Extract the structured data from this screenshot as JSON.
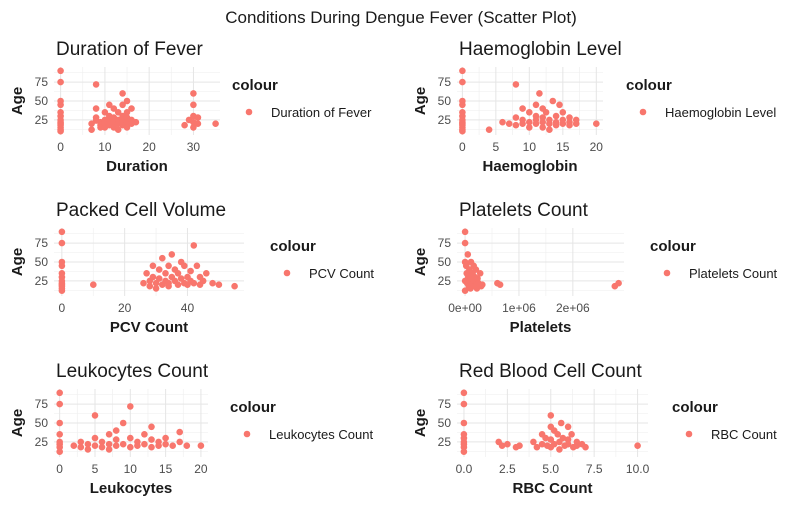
{
  "figure": {
    "title": "Conditions During Dengue Fever (Scatter Plot)",
    "point_color": "#F8766D"
  },
  "chart_data": [
    {
      "type": "scatter",
      "title": "Duration of Fever",
      "xlabel": "Duration",
      "ylabel": "Age",
      "legend_title": "colour",
      "legend_label": "Duration of Fever",
      "xlim": [
        -1.5,
        36
      ],
      "ylim": [
        5,
        95
      ],
      "xticks": [
        0,
        10,
        20,
        30
      ],
      "xtick_labels": [
        "0",
        "10",
        "20",
        "30"
      ],
      "yticks": [
        25,
        50,
        75
      ],
      "ytick_labels": [
        "25",
        "50",
        "75"
      ],
      "grid": true,
      "legend_position": "right",
      "points": [
        [
          0,
          90
        ],
        [
          0,
          75
        ],
        [
          0,
          50
        ],
        [
          0,
          45
        ],
        [
          0,
          35
        ],
        [
          0,
          30
        ],
        [
          0,
          25
        ],
        [
          0,
          22
        ],
        [
          0,
          20
        ],
        [
          0,
          18
        ],
        [
          0,
          15
        ],
        [
          0,
          12
        ],
        [
          0,
          10
        ],
        [
          7,
          20
        ],
        [
          7,
          12
        ],
        [
          8,
          72
        ],
        [
          8,
          40
        ],
        [
          8,
          28
        ],
        [
          8,
          24
        ],
        [
          9,
          22
        ],
        [
          9,
          18
        ],
        [
          9,
          15
        ],
        [
          10,
          35
        ],
        [
          10,
          25
        ],
        [
          10,
          22
        ],
        [
          10,
          20
        ],
        [
          10,
          15
        ],
        [
          11,
          45
        ],
        [
          11,
          30
        ],
        [
          11,
          25
        ],
        [
          11,
          20
        ],
        [
          11,
          18
        ],
        [
          12,
          40
        ],
        [
          12,
          28
        ],
        [
          12,
          22
        ],
        [
          12,
          15
        ],
        [
          13,
          35
        ],
        [
          13,
          25
        ],
        [
          13,
          20
        ],
        [
          13,
          12
        ],
        [
          14,
          60
        ],
        [
          14,
          45
        ],
        [
          14,
          30
        ],
        [
          14,
          25
        ],
        [
          14,
          22
        ],
        [
          14,
          18
        ],
        [
          15,
          50
        ],
        [
          15,
          35
        ],
        [
          15,
          28
        ],
        [
          15,
          22
        ],
        [
          15,
          20
        ],
        [
          15,
          15
        ],
        [
          16,
          40
        ],
        [
          16,
          25
        ],
        [
          16,
          20
        ],
        [
          17,
          22
        ],
        [
          28,
          18
        ],
        [
          29,
          25
        ],
        [
          30,
          60
        ],
        [
          30,
          45
        ],
        [
          30,
          30
        ],
        [
          30,
          22
        ],
        [
          30,
          15
        ],
        [
          31,
          20
        ],
        [
          31,
          28
        ],
        [
          35,
          20
        ]
      ]
    },
    {
      "type": "scatter",
      "title": "Haemoglobin Level",
      "xlabel": "Haemoglobin",
      "ylabel": "Age",
      "legend_title": "colour",
      "legend_label": "Haemoglobin Level",
      "xlim": [
        -0.8,
        21
      ],
      "ylim": [
        5,
        95
      ],
      "xticks": [
        0,
        5,
        10,
        15,
        20
      ],
      "xtick_labels": [
        "0",
        "5",
        "10",
        "15",
        "20"
      ],
      "yticks": [
        25,
        50,
        75
      ],
      "ytick_labels": [
        "25",
        "50",
        "75"
      ],
      "grid": true,
      "legend_position": "right",
      "points": [
        [
          0,
          90
        ],
        [
          0,
          75
        ],
        [
          0,
          50
        ],
        [
          0,
          45
        ],
        [
          0,
          35
        ],
        [
          0,
          30
        ],
        [
          0,
          25
        ],
        [
          0,
          22
        ],
        [
          0,
          20
        ],
        [
          0,
          18
        ],
        [
          0,
          15
        ],
        [
          0,
          12
        ],
        [
          0,
          10
        ],
        [
          4,
          12
        ],
        [
          6,
          22
        ],
        [
          7,
          20
        ],
        [
          8,
          72
        ],
        [
          8,
          28
        ],
        [
          8,
          18
        ],
        [
          9,
          40
        ],
        [
          9,
          25
        ],
        [
          9,
          20
        ],
        [
          10,
          35
        ],
        [
          10,
          22
        ],
        [
          10,
          15
        ],
        [
          11,
          45
        ],
        [
          11,
          30
        ],
        [
          11,
          25
        ],
        [
          11,
          20
        ],
        [
          11.5,
          60
        ],
        [
          12,
          40
        ],
        [
          12,
          28
        ],
        [
          12,
          22
        ],
        [
          12,
          15
        ],
        [
          12.5,
          35
        ],
        [
          13,
          25
        ],
        [
          13,
          20
        ],
        [
          13,
          12
        ],
        [
          13.5,
          50
        ],
        [
          14,
          30
        ],
        [
          14,
          22
        ],
        [
          14,
          18
        ],
        [
          14.5,
          45
        ],
        [
          15,
          35
        ],
        [
          15,
          25
        ],
        [
          15,
          20
        ],
        [
          16,
          28
        ],
        [
          16,
          22
        ],
        [
          16,
          18
        ],
        [
          17,
          25
        ],
        [
          17,
          20
        ],
        [
          20,
          20
        ]
      ]
    },
    {
      "type": "scatter",
      "title": "Packed Cell Volume",
      "xlabel": "PCV Count",
      "ylabel": "Age",
      "legend_title": "colour",
      "legend_label": "PCV Count",
      "xlim": [
        -2.5,
        58
      ],
      "ylim": [
        5,
        95
      ],
      "xticks": [
        0,
        20,
        40
      ],
      "xtick_labels": [
        "0",
        "20",
        "40"
      ],
      "yticks": [
        25,
        50,
        75
      ],
      "ytick_labels": [
        "25",
        "50",
        "75"
      ],
      "grid": true,
      "legend_position": "right",
      "points": [
        [
          0,
          90
        ],
        [
          0,
          75
        ],
        [
          0,
          50
        ],
        [
          0,
          45
        ],
        [
          0,
          35
        ],
        [
          0,
          30
        ],
        [
          0,
          25
        ],
        [
          0,
          22
        ],
        [
          0,
          20
        ],
        [
          0,
          18
        ],
        [
          0,
          15
        ],
        [
          0,
          12
        ],
        [
          10,
          20
        ],
        [
          26,
          22
        ],
        [
          27,
          35
        ],
        [
          28,
          25
        ],
        [
          28,
          18
        ],
        [
          29,
          45
        ],
        [
          29,
          30
        ],
        [
          30,
          22
        ],
        [
          30,
          15
        ],
        [
          31,
          40
        ],
        [
          31,
          28
        ],
        [
          32,
          55
        ],
        [
          32,
          20
        ],
        [
          33,
          35
        ],
        [
          33,
          25
        ],
        [
          34,
          45
        ],
        [
          34,
          22
        ],
        [
          34,
          18
        ],
        [
          35,
          60
        ],
        [
          35,
          30
        ],
        [
          36,
          40
        ],
        [
          36,
          25
        ],
        [
          37,
          20
        ],
        [
          37,
          35
        ],
        [
          38,
          50
        ],
        [
          38,
          28
        ],
        [
          39,
          22
        ],
        [
          39,
          45
        ],
        [
          40,
          30
        ],
        [
          40,
          20
        ],
        [
          41,
          38
        ],
        [
          41,
          25
        ],
        [
          42,
          72
        ],
        [
          42,
          22
        ],
        [
          43,
          45
        ],
        [
          44,
          30
        ],
        [
          44,
          20
        ],
        [
          45,
          25
        ],
        [
          46,
          35
        ],
        [
          48,
          22
        ],
        [
          50,
          20
        ],
        [
          55,
          18
        ]
      ]
    },
    {
      "type": "scatter",
      "title": "Platelets Count",
      "xlabel": "Platelets",
      "ylabel": "Age",
      "legend_title": "colour",
      "legend_label": "Platelets Count",
      "xlim": [
        -150000,
        2950000
      ],
      "ylim": [
        5,
        95
      ],
      "xticks": [
        0,
        1000000,
        2000000
      ],
      "xtick_labels": [
        "0e+00",
        "1e+06",
        "2e+06"
      ],
      "yticks": [
        25,
        50,
        75
      ],
      "ytick_labels": [
        "25",
        "50",
        "75"
      ],
      "grid": true,
      "legend_position": "right",
      "points": [
        [
          0,
          90
        ],
        [
          0,
          75
        ],
        [
          0,
          50
        ],
        [
          0,
          25
        ],
        [
          0,
          12
        ],
        [
          20000,
          45
        ],
        [
          30000,
          35
        ],
        [
          40000,
          22
        ],
        [
          50000,
          60
        ],
        [
          60000,
          30
        ],
        [
          70000,
          18
        ],
        [
          80000,
          40
        ],
        [
          90000,
          25
        ],
        [
          100000,
          15
        ],
        [
          110000,
          50
        ],
        [
          120000,
          28
        ],
        [
          130000,
          20
        ],
        [
          140000,
          35
        ],
        [
          150000,
          22
        ],
        [
          160000,
          45
        ],
        [
          170000,
          18
        ],
        [
          180000,
          30
        ],
        [
          190000,
          25
        ],
        [
          200000,
          40
        ],
        [
          210000,
          20
        ],
        [
          220000,
          15
        ],
        [
          230000,
          28
        ],
        [
          250000,
          22
        ],
        [
          280000,
          35
        ],
        [
          300000,
          18
        ],
        [
          320000,
          20
        ],
        [
          600000,
          22
        ],
        [
          650000,
          20
        ],
        [
          2780000,
          18
        ],
        [
          2850000,
          22
        ]
      ]
    },
    {
      "type": "scatter",
      "title": "Leukocytes Count",
      "xlabel": "Leukocytes",
      "ylabel": "Age",
      "legend_title": "colour",
      "legend_label": "Leukocytes Count",
      "xlim": [
        -0.8,
        21
      ],
      "ylim": [
        5,
        95
      ],
      "xticks": [
        0,
        5,
        10,
        15,
        20
      ],
      "xtick_labels": [
        "0",
        "5",
        "10",
        "15",
        "20"
      ],
      "yticks": [
        25,
        50,
        75
      ],
      "ytick_labels": [
        "25",
        "50",
        "75"
      ],
      "grid": true,
      "legend_position": "right",
      "points": [
        [
          0,
          90
        ],
        [
          0,
          75
        ],
        [
          0,
          50
        ],
        [
          0,
          35
        ],
        [
          0,
          25
        ],
        [
          0,
          22
        ],
        [
          0,
          18
        ],
        [
          0,
          12
        ],
        [
          2,
          20
        ],
        [
          3,
          25
        ],
        [
          3,
          18
        ],
        [
          4,
          22
        ],
        [
          4,
          15
        ],
        [
          5,
          60
        ],
        [
          5,
          30
        ],
        [
          5,
          20
        ],
        [
          6,
          25
        ],
        [
          6,
          18
        ],
        [
          7,
          35
        ],
        [
          7,
          22
        ],
        [
          7,
          15
        ],
        [
          8,
          40
        ],
        [
          8,
          28
        ],
        [
          8,
          20
        ],
        [
          9,
          22
        ],
        [
          9,
          50
        ],
        [
          10,
          72
        ],
        [
          10,
          30
        ],
        [
          10,
          18
        ],
        [
          11,
          25
        ],
        [
          11,
          20
        ],
        [
          12,
          35
        ],
        [
          12,
          22
        ],
        [
          13,
          28
        ],
        [
          13,
          45
        ],
        [
          13,
          18
        ],
        [
          14,
          25
        ],
        [
          14,
          20
        ],
        [
          15,
          30
        ],
        [
          15,
          22
        ],
        [
          16,
          20
        ],
        [
          17,
          38
        ],
        [
          17,
          25
        ],
        [
          18,
          20
        ],
        [
          20,
          20
        ]
      ]
    },
    {
      "type": "scatter",
      "title": "Red Blood Cell Count",
      "xlabel": "RBC Count",
      "ylabel": "Age",
      "legend_title": "colour",
      "legend_label": "RBC Count",
      "xlim": [
        -0.4,
        10.6
      ],
      "ylim": [
        5,
        95
      ],
      "xticks": [
        0,
        2.5,
        5,
        7.5,
        10
      ],
      "xtick_labels": [
        "0.0",
        "2.5",
        "5.0",
        "7.5",
        "10.0"
      ],
      "yticks": [
        25,
        50,
        75
      ],
      "ytick_labels": [
        "25",
        "50",
        "75"
      ],
      "grid": true,
      "legend_position": "right",
      "points": [
        [
          0,
          90
        ],
        [
          0,
          75
        ],
        [
          0,
          50
        ],
        [
          0,
          35
        ],
        [
          0,
          30
        ],
        [
          0,
          25
        ],
        [
          0,
          22
        ],
        [
          0,
          18
        ],
        [
          0,
          12
        ],
        [
          2,
          25
        ],
        [
          2.2,
          20
        ],
        [
          2.5,
          22
        ],
        [
          3,
          18
        ],
        [
          3.2,
          20
        ],
        [
          4,
          25
        ],
        [
          4.2,
          18
        ],
        [
          4.5,
          35
        ],
        [
          4.5,
          22
        ],
        [
          4.7,
          30
        ],
        [
          4.8,
          20
        ],
        [
          5,
          60
        ],
        [
          5,
          45
        ],
        [
          5,
          28
        ],
        [
          5,
          18
        ],
        [
          5.2,
          40
        ],
        [
          5.2,
          22
        ],
        [
          5.4,
          35
        ],
        [
          5.5,
          25
        ],
        [
          5.5,
          15
        ],
        [
          5.6,
          50
        ],
        [
          5.7,
          30
        ],
        [
          5.8,
          20
        ],
        [
          6,
          45
        ],
        [
          6,
          28
        ],
        [
          6,
          22
        ],
        [
          6.2,
          35
        ],
        [
          6.3,
          18
        ],
        [
          6.5,
          25
        ],
        [
          6.5,
          20
        ],
        [
          6.8,
          22
        ],
        [
          7,
          18
        ],
        [
          10,
          20
        ]
      ]
    }
  ]
}
